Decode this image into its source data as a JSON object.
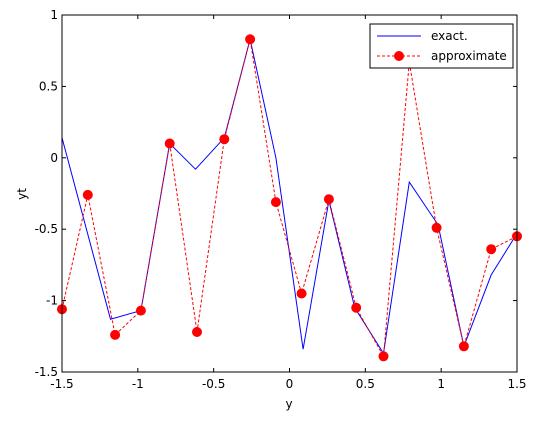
{
  "chart_data": {
    "type": "line",
    "title": "",
    "xlabel": "y",
    "ylabel": "yt",
    "xlim": [
      -1.5,
      1.5
    ],
    "ylim": [
      -1.5,
      1
    ],
    "xticks": [
      -1.5,
      -1,
      -0.5,
      0,
      0.5,
      1,
      1.5
    ],
    "xtick_labels": [
      "-1.5",
      "-1",
      "-0.5",
      "0",
      "0.5",
      "1",
      "1.5"
    ],
    "yticks": [
      -1.5,
      -1,
      -0.5,
      0,
      0.5,
      1
    ],
    "ytick_labels": [
      "-1.5",
      "-1",
      "-0.5",
      "0",
      "0.5",
      "1"
    ],
    "grid": false,
    "legend_position": "top-right",
    "series": [
      {
        "name": "exact.",
        "color": "#0000ff",
        "line_style": "solid",
        "marker": "none",
        "x": [
          -1.5,
          -1.18,
          -0.98,
          -0.79,
          -0.62,
          -0.43,
          -0.26,
          -0.09,
          0.09,
          0.26,
          0.43,
          0.62,
          0.79,
          0.98,
          1.15,
          1.33,
          1.5
        ],
        "y": [
          0.14,
          -1.13,
          -1.07,
          0.1,
          -0.08,
          0.14,
          0.83,
          0.0,
          -1.34,
          -0.3,
          -1.05,
          -1.37,
          -0.17,
          -0.47,
          -1.32,
          -0.82,
          -0.53
        ]
      },
      {
        "name": "approximate",
        "color": "#ff0000",
        "line_style": "dashed",
        "marker": "circle",
        "x": [
          -1.5,
          -1.33,
          -1.15,
          -0.98,
          -0.79,
          -0.61,
          -0.43,
          -0.26,
          -0.09,
          0.08,
          0.26,
          0.44,
          0.62,
          0.79,
          0.97,
          1.15,
          1.33,
          1.5
        ],
        "y": [
          -1.06,
          -0.26,
          -1.24,
          -1.07,
          0.1,
          -1.22,
          0.13,
          0.83,
          -0.31,
          -0.95,
          -0.29,
          -1.05,
          -1.39,
          0.67,
          -0.49,
          -1.32,
          -0.64,
          -0.55
        ]
      }
    ]
  }
}
